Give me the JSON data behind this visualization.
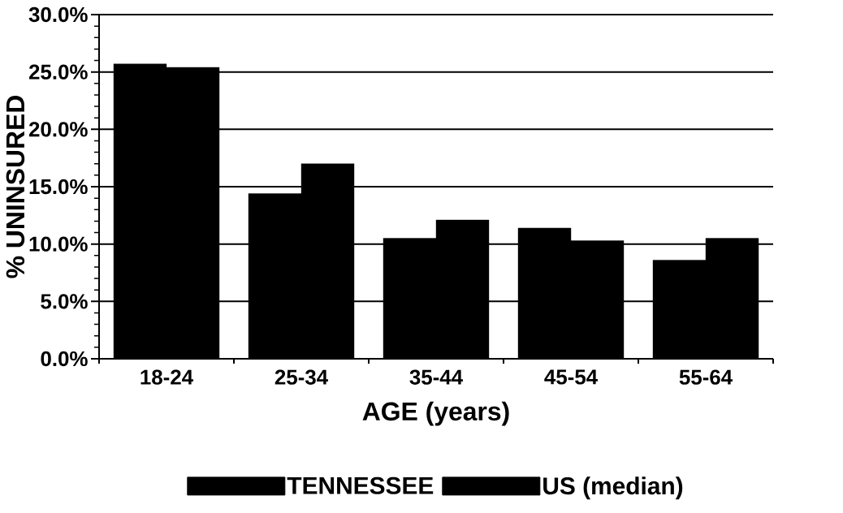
{
  "chart_data": {
    "type": "bar",
    "xlabel": "AGE (years)",
    "ylabel": "% UNINSURED",
    "categories": [
      "18-24",
      "25-34",
      "35-44",
      "45-54",
      "55-64"
    ],
    "series": [
      {
        "name": "TENNESSEE",
        "color": "#000000",
        "values": [
          25.7,
          14.4,
          10.5,
          11.4,
          8.6
        ]
      },
      {
        "name": "US (median)",
        "color": "#000000",
        "values": [
          25.4,
          17.0,
          12.1,
          10.3,
          10.5
        ]
      }
    ],
    "ylim": [
      0,
      30
    ],
    "yticks": [
      {
        "value": 0,
        "label": "0.0%"
      },
      {
        "value": 5,
        "label": "5.0%"
      },
      {
        "value": 10,
        "label": "10.0%"
      },
      {
        "value": 15,
        "label": "15.0%"
      },
      {
        "value": 20,
        "label": "20.0%"
      },
      {
        "value": 25,
        "label": "25.0%"
      },
      {
        "value": 30,
        "label": "30.0%"
      }
    ],
    "grid": "y",
    "legend": "bottom"
  }
}
